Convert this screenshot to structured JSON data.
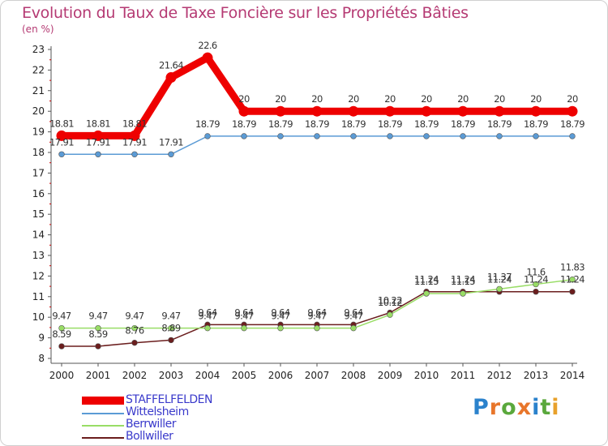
{
  "title": "Evolution du Taux de Taxe Foncière sur les Propriétés Bâties",
  "unit": "(en %)",
  "brand": {
    "letters": [
      "P",
      "r",
      "o",
      "x",
      "i",
      "t",
      "i"
    ],
    "colors": [
      "#2b82cc",
      "#e8762b",
      "#5aa83c",
      "#e8762b",
      "#2b82cc",
      "#5aa83c",
      "#e8a12b"
    ]
  },
  "chart_data": {
    "type": "line",
    "x": [
      "2000",
      "2001",
      "2002",
      "2003",
      "2004",
      "2005",
      "2006",
      "2007",
      "2008",
      "2009",
      "2010",
      "2011",
      "2012",
      "2013",
      "2014"
    ],
    "ylim": [
      8,
      23
    ],
    "yticks": [
      "8",
      "9",
      "10",
      "11",
      "12",
      "13",
      "14",
      "15",
      "16",
      "17",
      "18",
      "19",
      "20",
      "21",
      "22",
      "23"
    ],
    "grid": false,
    "legend": "bottom-left",
    "series": [
      {
        "name": "STAFFELFELDEN",
        "color": "#ee0000",
        "values": [
          18.81,
          18.81,
          18.81,
          21.64,
          22.6,
          20,
          20,
          20,
          20,
          20,
          20,
          20,
          20,
          20,
          20
        ],
        "labels": [
          "18.81",
          "18.81",
          "18.81",
          "21.64",
          "22.6",
          "20",
          "20",
          "20",
          "20",
          "20",
          "20",
          "20",
          "20",
          "20",
          "20"
        ]
      },
      {
        "name": "Wittelsheim",
        "color": "#5b9bd5",
        "values": [
          17.91,
          17.91,
          17.91,
          17.91,
          18.79,
          18.79,
          18.79,
          18.79,
          18.79,
          18.79,
          18.79,
          18.79,
          18.79,
          18.79,
          18.79
        ],
        "labels": [
          "17.91",
          "17.91",
          "17.91",
          "17.91",
          "18.79",
          "18.79",
          "18.79",
          "18.79",
          "18.79",
          "18.79",
          "18.79",
          "18.79",
          "18.79",
          "18.79",
          "18.79"
        ]
      },
      {
        "name": "Berrwiller",
        "color": "#99dd66",
        "values": [
          9.47,
          9.47,
          9.47,
          9.47,
          9.47,
          9.47,
          9.47,
          9.47,
          9.47,
          10.12,
          11.15,
          11.15,
          11.37,
          11.6,
          11.83
        ],
        "labels": [
          "9.47",
          "9.47",
          "9.47",
          "9.47",
          "9.47",
          "9.47",
          "9.47",
          "9.47",
          "9.47",
          "10.12",
          "11.15",
          "11.15",
          "11.37",
          "11.6",
          "11.83"
        ]
      },
      {
        "name": "Bollwiller",
        "color": "#6b1e1e",
        "values": [
          8.59,
          8.59,
          8.76,
          8.89,
          9.64,
          9.64,
          9.64,
          9.64,
          9.64,
          10.22,
          11.24,
          11.24,
          11.24,
          11.24,
          11.24
        ],
        "labels": [
          "8.59",
          "8.59",
          "8.76",
          "8.89",
          "9.64",
          "9.64",
          "9.64",
          "9.64",
          "9.64",
          "10.22",
          "11.24",
          "11.24",
          "11.24",
          "11.24",
          "11.24"
        ]
      }
    ]
  }
}
